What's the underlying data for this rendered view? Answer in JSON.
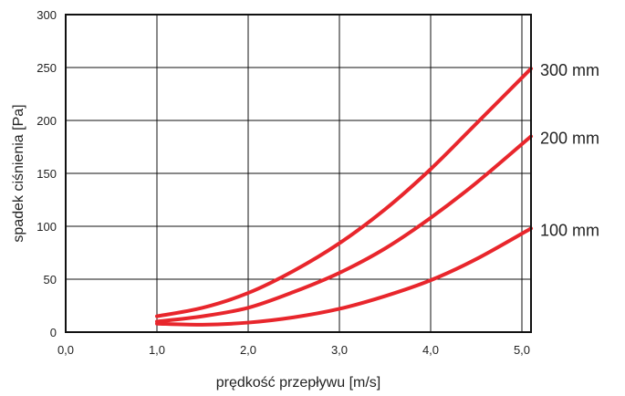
{
  "chart_data": {
    "type": "line",
    "title": "",
    "xlabel": "prędkość przepływu  [m/s]",
    "ylabel": "spadek ciśnienia [Pa]",
    "xlim": [
      0,
      5.1
    ],
    "ylim": [
      0,
      300
    ],
    "x_ticks": [
      0,
      1,
      2,
      3,
      4,
      5
    ],
    "x_tick_labels": [
      "0,0",
      "1,0",
      "2,0",
      "3,0",
      "4,0",
      "5,0"
    ],
    "y_ticks": [
      0,
      50,
      100,
      150,
      200,
      250,
      300
    ],
    "y_tick_labels": [
      "0",
      "50",
      "100",
      "150",
      "200",
      "250",
      "300"
    ],
    "grid": true,
    "line_color": "#e8262c",
    "series": [
      {
        "name": "300 mm",
        "x": [
          1.0,
          1.5,
          2.0,
          2.5,
          3.0,
          3.5,
          4.0,
          4.5,
          5.1
        ],
        "values": [
          15,
          23,
          37,
          58,
          84,
          116,
          154,
          197,
          249
        ]
      },
      {
        "name": "200 mm",
        "x": [
          1.0,
          1.5,
          2.0,
          2.5,
          3.0,
          3.5,
          4.0,
          4.5,
          5.1
        ],
        "values": [
          10,
          15,
          23,
          38,
          56,
          79,
          108,
          141,
          185
        ]
      },
      {
        "name": "100 mm",
        "x": [
          1.0,
          1.5,
          2.0,
          2.5,
          3.0,
          3.5,
          4.0,
          4.5,
          5.1
        ],
        "values": [
          8,
          7,
          9,
          14,
          22,
          34,
          49,
          69,
          98
        ]
      }
    ]
  }
}
